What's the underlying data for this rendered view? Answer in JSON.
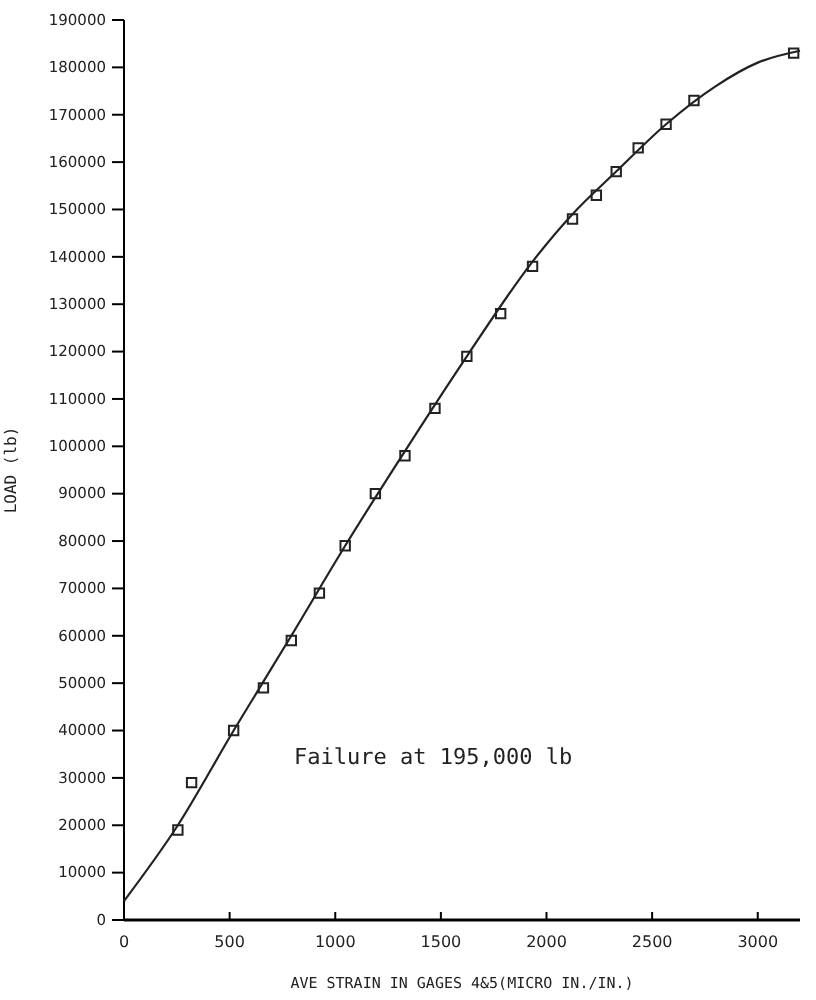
{
  "chart_data": {
    "type": "scatter",
    "xlabel": "AVE STRAIN IN GAGES 4&5(MICRO IN./IN.)",
    "ylabel": "LOAD (lb)",
    "xlim": [
      0,
      3200
    ],
    "ylim": [
      0,
      190000
    ],
    "xticks": [
      0,
      500,
      1000,
      1500,
      2000,
      2500,
      3000
    ],
    "yticks": [
      0,
      10000,
      20000,
      30000,
      40000,
      50000,
      60000,
      70000,
      80000,
      90000,
      100000,
      110000,
      120000,
      130000,
      140000,
      150000,
      160000,
      170000,
      180000,
      190000
    ],
    "marker": "square",
    "grid": false,
    "annotations": [
      "Failure at 195,000 lb"
    ],
    "series": [
      {
        "color": "#222222",
        "x": [
          255,
          320,
          519,
          660,
          792,
          925,
          1047,
          1190,
          1330,
          1472,
          1623,
          1783,
          1934,
          2123,
          2236,
          2330,
          2434,
          2566,
          2698,
          3170
        ],
        "values": [
          19000,
          29000,
          40000,
          49000,
          59000,
          69000,
          79000,
          90000,
          98000,
          108000,
          119000,
          128000,
          138000,
          148000,
          153000,
          158000,
          163000,
          168000,
          173000,
          183000
        ]
      },
      {
        "type": "line",
        "color": "#222222",
        "marker": "none",
        "line_style": "solid",
        "x": [
          0,
          255,
          519,
          792,
          1047,
          1330,
          1623,
          1934,
          2123,
          2330,
          2566,
          2800,
          3000,
          3200
        ],
        "values": [
          4000,
          20000,
          40000,
          60000,
          79000,
          99000,
          119000,
          139000,
          149000,
          158000,
          168000,
          176000,
          181000,
          183500
        ]
      }
    ]
  }
}
